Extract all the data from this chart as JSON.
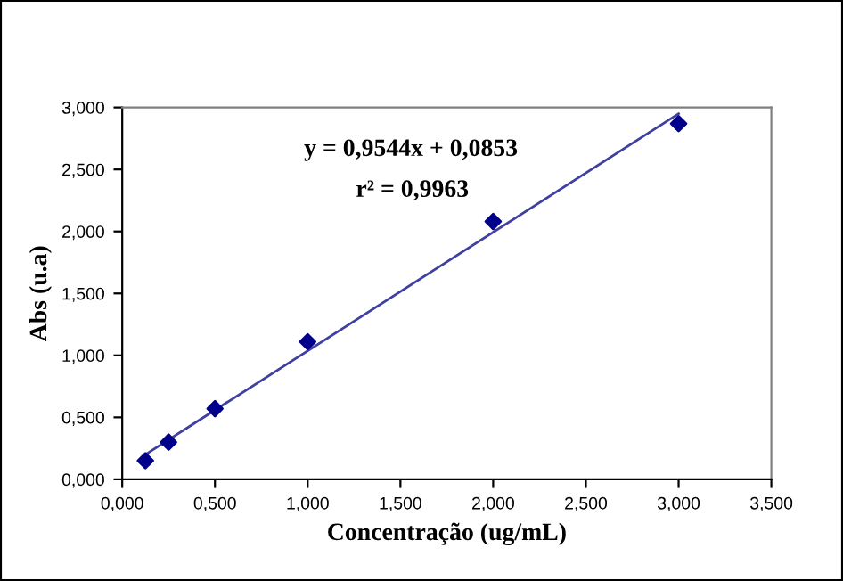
{
  "chart_data": {
    "type": "scatter",
    "xlabel": "Concentração (ug/mL)",
    "ylabel": "Abs (u.a)",
    "annotations": [
      "y = 0,9544x + 0,0853",
      "r² = 0,9963"
    ],
    "grid": false,
    "legend": false,
    "series": [
      {
        "marker": "diamond",
        "color": "#00008b",
        "x": [
          0.125,
          0.25,
          0.5,
          1.0,
          2.0,
          3.0
        ],
        "values": [
          0.15,
          0.3,
          0.57,
          1.11,
          2.08,
          2.87
        ]
      },
      {
        "type": "line",
        "color": "#4040a0",
        "x": [
          0.125,
          3.0
        ],
        "values": [
          0.2,
          2.95
        ]
      }
    ],
    "xlim": [
      0,
      3.5
    ],
    "ylim": [
      0,
      3
    ],
    "xticks": [
      {
        "value": 0,
        "label": "0,000"
      },
      {
        "value": 0.5,
        "label": "0,500"
      },
      {
        "value": 1,
        "label": "1,000"
      },
      {
        "value": 1.5,
        "label": "1,500"
      },
      {
        "value": 2,
        "label": "2,000"
      },
      {
        "value": 2.5,
        "label": "2,500"
      },
      {
        "value": 3,
        "label": "3,000"
      },
      {
        "value": 3.5,
        "label": "3,500"
      }
    ],
    "yticks": [
      {
        "value": 0,
        "label": "0,000"
      },
      {
        "value": 0.5,
        "label": "0,500"
      },
      {
        "value": 1,
        "label": "1,000"
      },
      {
        "value": 1.5,
        "label": "1,500"
      },
      {
        "value": 2,
        "label": "2,000"
      },
      {
        "value": 2.5,
        "label": "2,500"
      },
      {
        "value": 3,
        "label": "3,000"
      }
    ]
  }
}
